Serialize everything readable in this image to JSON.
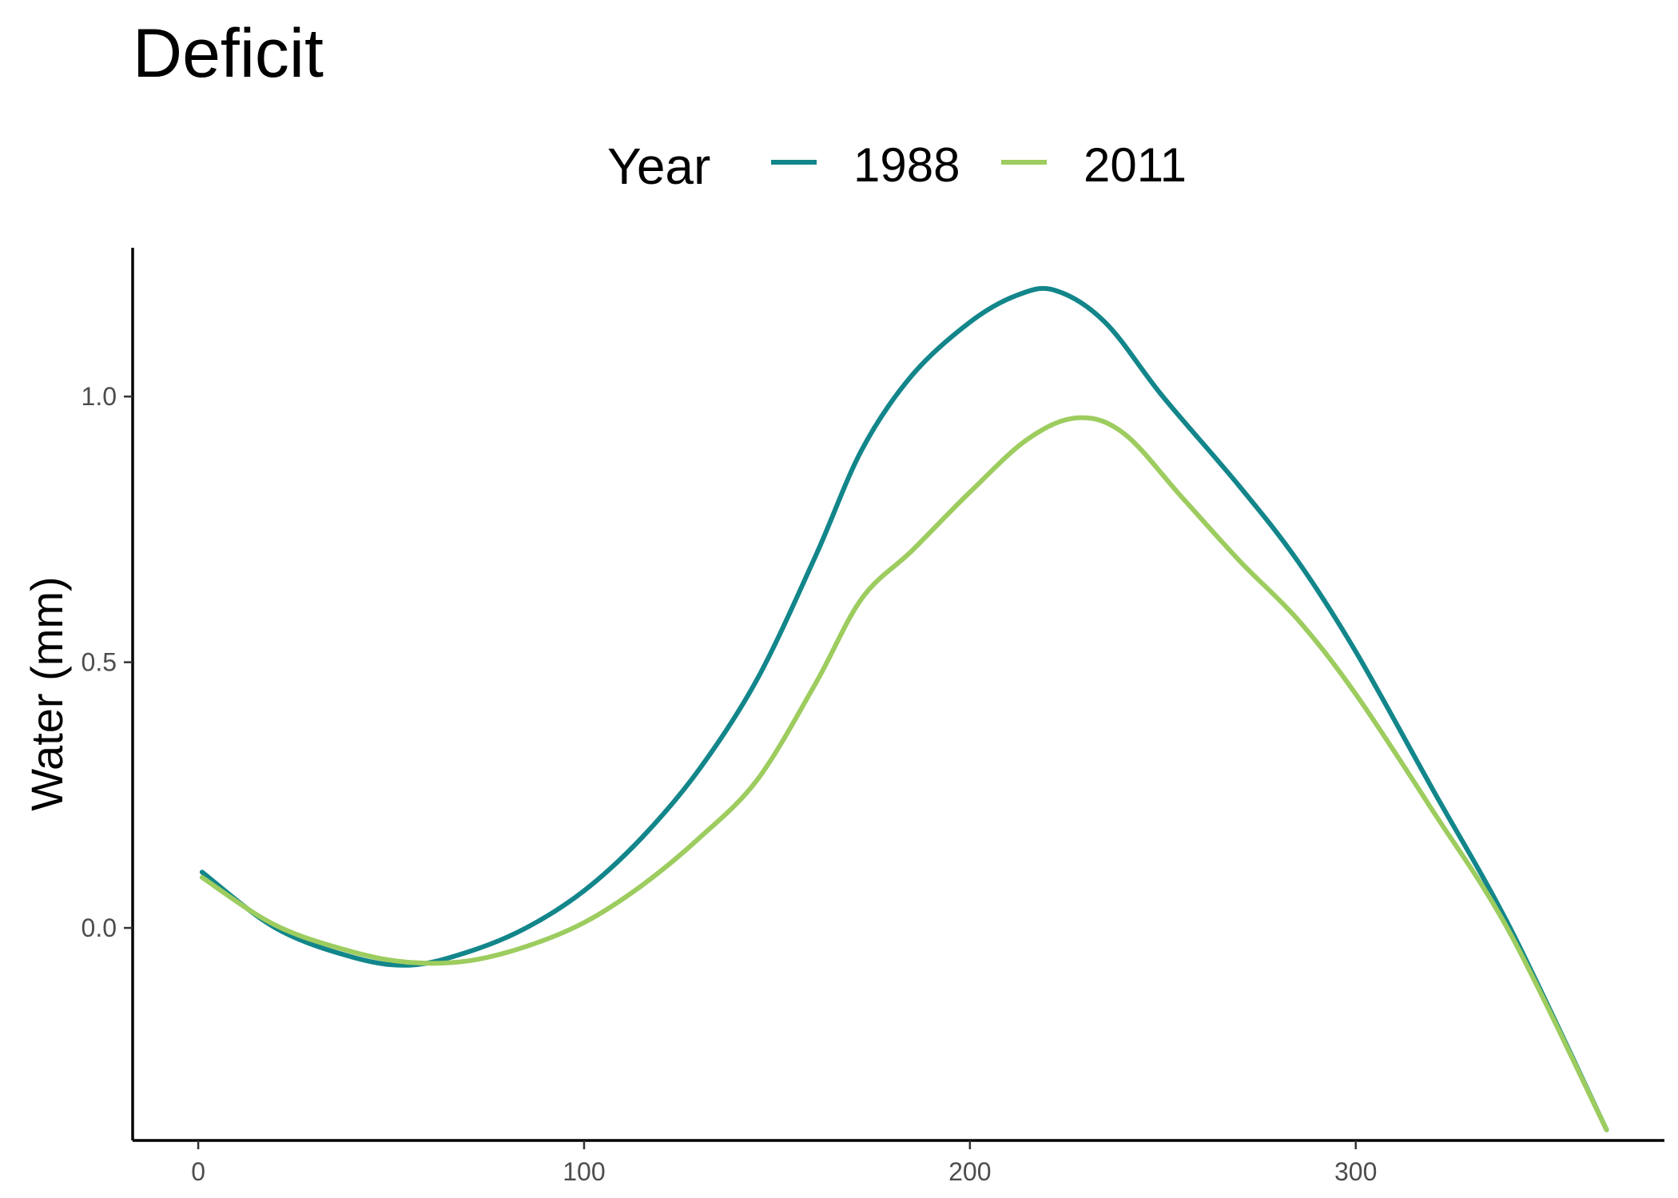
{
  "chart_data": {
    "type": "line",
    "title": "Deficit",
    "xlabel": "",
    "ylabel": "Water (mm)",
    "xlim": [
      -17,
      380
    ],
    "ylim": [
      -0.4,
      1.28
    ],
    "x_ticks": [
      0,
      100,
      200,
      300
    ],
    "y_ticks": [
      0.0,
      0.5,
      1.0
    ],
    "x_tick_labels": [
      "0",
      "100",
      "200",
      "300"
    ],
    "y_tick_labels": [
      "0.0",
      "0.5",
      "1.0"
    ],
    "grid": false,
    "legend": {
      "title": "Year",
      "position": "top"
    },
    "series": [
      {
        "name": "1988",
        "color": "#12868a",
        "x": [
          1,
          20,
          40,
          55,
          70,
          85,
          100,
          115,
          130,
          145,
          160,
          172,
          185,
          200,
          212,
          222,
          235,
          250,
          270,
          285,
          300,
          320,
          340,
          365
        ],
        "y": [
          0.105,
          0.0,
          -0.055,
          -0.07,
          -0.045,
          0.0,
          0.07,
          0.17,
          0.3,
          0.47,
          0.7,
          0.9,
          1.04,
          1.14,
          1.19,
          1.2,
          1.14,
          1.0,
          0.83,
          0.69,
          0.52,
          0.26,
          0.0,
          -0.38
        ]
      },
      {
        "name": "2011",
        "color": "#9dcc5f",
        "x": [
          1,
          20,
          40,
          55,
          70,
          85,
          100,
          115,
          130,
          145,
          160,
          172,
          185,
          200,
          215,
          228,
          240,
          255,
          270,
          285,
          300,
          320,
          340,
          365
        ],
        "y": [
          0.095,
          0.005,
          -0.045,
          -0.065,
          -0.062,
          -0.035,
          0.01,
          0.08,
          0.17,
          0.28,
          0.46,
          0.62,
          0.71,
          0.82,
          0.92,
          0.96,
          0.93,
          0.81,
          0.69,
          0.58,
          0.44,
          0.22,
          -0.01,
          -0.38
        ]
      }
    ]
  }
}
